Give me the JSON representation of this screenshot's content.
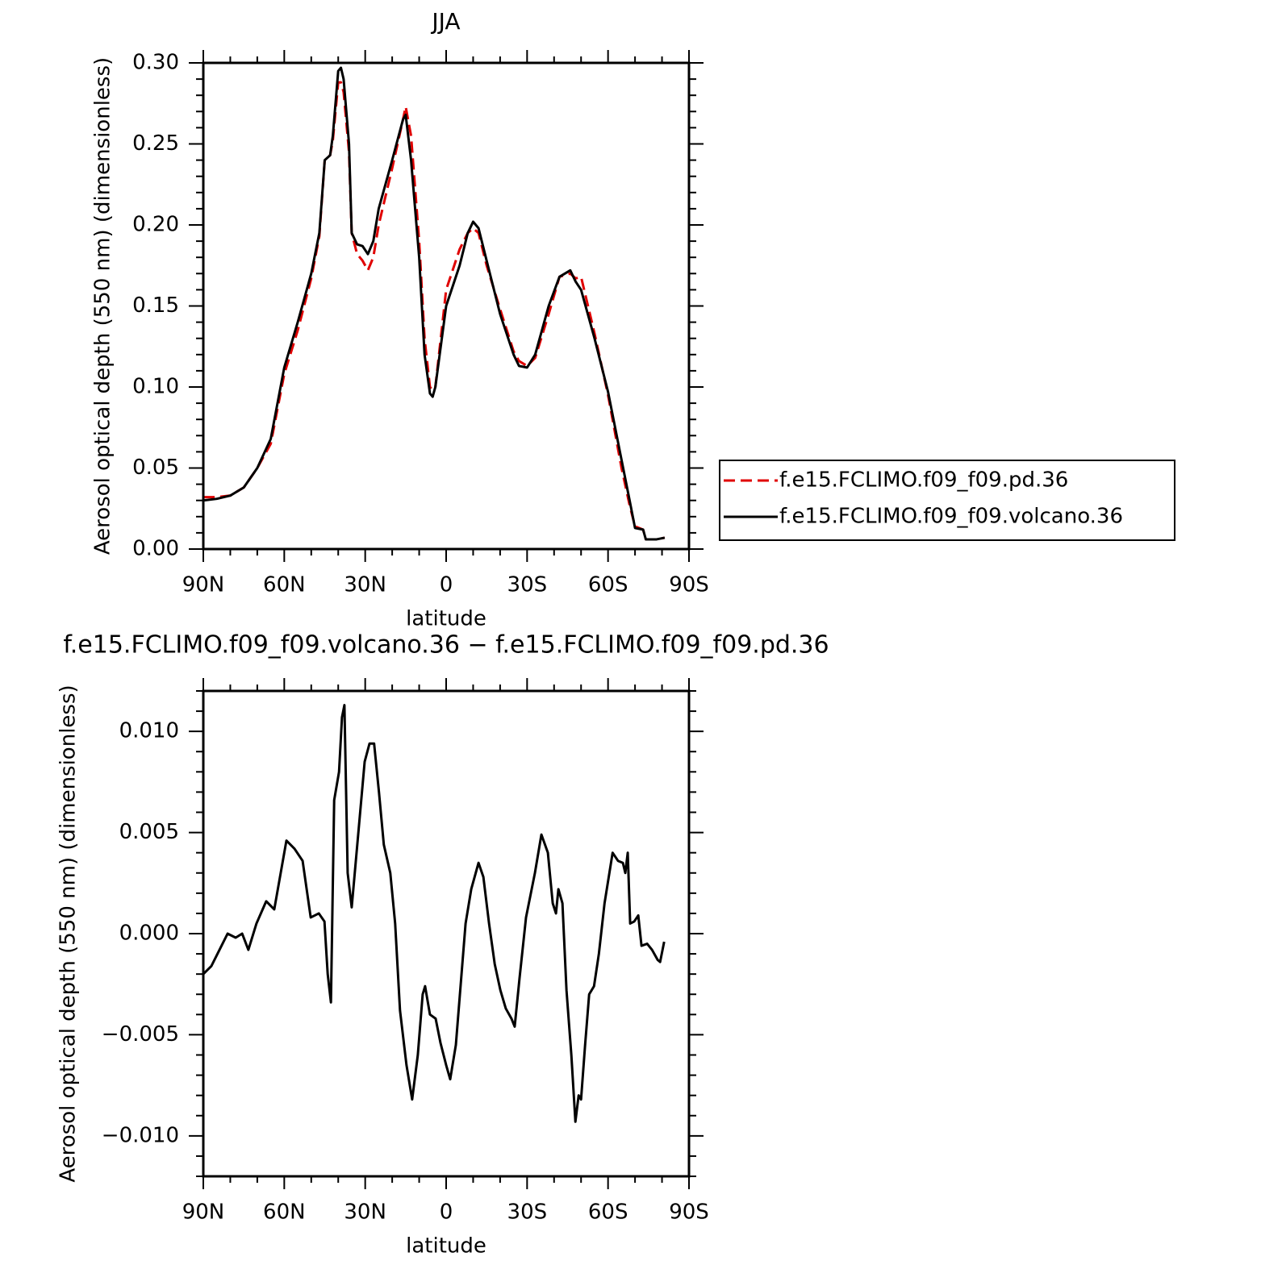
{
  "chart_data": [
    {
      "type": "line",
      "title": "JJA",
      "x_label": "latitude",
      "y_label": "Aerosol optical depth (550 nm) (dimensionless)",
      "x": [
        90,
        85,
        80,
        75,
        70,
        65,
        60,
        55,
        50,
        47,
        45,
        43,
        42,
        40,
        39,
        38,
        36,
        35,
        33,
        31,
        29,
        27,
        25,
        20,
        16,
        15,
        13,
        10,
        8,
        6,
        5,
        4,
        2,
        0,
        -5,
        -8,
        -10,
        -12,
        -15,
        -20,
        -25,
        -27,
        -30,
        -33,
        -38,
        -42,
        -46,
        -48,
        -50,
        -55,
        -60,
        -65,
        -68,
        -70,
        -73,
        -74,
        -78,
        -81
      ],
      "series": [
        {
          "name": "f.e15.FCLIMO.f09_f09.pd.36",
          "color": "#e00000",
          "linestyle": "dashed",
          "values": [
            0.032,
            0.032,
            0.033,
            0.038,
            0.05,
            0.065,
            0.108,
            0.135,
            0.167,
            0.193,
            0.24,
            0.243,
            0.252,
            0.288,
            0.288,
            0.282,
            0.245,
            0.195,
            0.182,
            0.178,
            0.172,
            0.18,
            0.2,
            0.235,
            0.265,
            0.273,
            0.255,
            0.19,
            0.13,
            0.1,
            0.098,
            0.1,
            0.13,
            0.16,
            0.185,
            0.195,
            0.198,
            0.195,
            0.175,
            0.148,
            0.122,
            0.116,
            0.113,
            0.118,
            0.145,
            0.168,
            0.17,
            0.167,
            0.168,
            0.133,
            0.095,
            0.05,
            0.027,
            0.014,
            0.012,
            0.006,
            0.006,
            0.007
          ]
        },
        {
          "name": "f.e15.FCLIMO.f09_f09.volcano.36",
          "color": "#000000",
          "linestyle": "solid",
          "values": [
            0.03,
            0.031,
            0.033,
            0.038,
            0.05,
            0.068,
            0.112,
            0.14,
            0.17,
            0.195,
            0.24,
            0.243,
            0.255,
            0.295,
            0.297,
            0.29,
            0.25,
            0.195,
            0.188,
            0.187,
            0.182,
            0.19,
            0.21,
            0.24,
            0.265,
            0.268,
            0.24,
            0.18,
            0.12,
            0.096,
            0.094,
            0.1,
            0.125,
            0.15,
            0.175,
            0.195,
            0.202,
            0.198,
            0.178,
            0.145,
            0.12,
            0.113,
            0.112,
            0.12,
            0.15,
            0.168,
            0.172,
            0.165,
            0.16,
            0.13,
            0.097,
            0.055,
            0.03,
            0.013,
            0.012,
            0.006,
            0.006,
            0.007
          ]
        }
      ],
      "xlim": [
        90,
        -90
      ],
      "xticks": [
        {
          "value": 90,
          "label": "90N"
        },
        {
          "value": 60,
          "label": "60N"
        },
        {
          "value": 30,
          "label": "30N"
        },
        0,
        {
          "value": -30,
          "label": "30S"
        },
        {
          "value": -60,
          "label": "60S"
        },
        {
          "value": -90,
          "label": "90S"
        }
      ],
      "ylim": [
        0,
        0.3
      ],
      "yticks": [
        {
          "value": 0,
          "label": "0.00"
        },
        {
          "value": 0.05,
          "label": "0.05"
        },
        {
          "value": 0.1,
          "label": "0.10"
        },
        {
          "value": 0.15,
          "label": "0.15"
        },
        {
          "value": 0.2,
          "label": "0.20"
        },
        {
          "value": 0.25,
          "label": "0.25"
        },
        {
          "value": 0.3,
          "label": "0.30"
        }
      ],
      "legend": "right"
    },
    {
      "type": "line",
      "title": "f.e15.FCLIMO.f09_f09.volcano.36 − f.e15.FCLIMO.f09_f09.pd.36",
      "x_label": "latitude",
      "y_label": "Aerosol optical depth (550 nm) (dimensionless)",
      "x": [
        90,
        87.0,
        84.0,
        81.0,
        78.0,
        75.6,
        73.3,
        70.3,
        66.7,
        63.7,
        59.2,
        56.2,
        53.2,
        50.2,
        47.2,
        45.1,
        43.9,
        42.7,
        41.5,
        39.7,
        38.6,
        37.7,
        36.5,
        35.0,
        33.2,
        30.2,
        28.4,
        26.7,
        24.9,
        23.1,
        20.7,
        18.9,
        17.1,
        14.7,
        12.6,
        10.5,
        8.7,
        7.8,
        6.0,
        3.9,
        2.1,
        0,
        -1.5,
        -3.6,
        -5.4,
        -7.2,
        -9.3,
        -12.0,
        -13.8,
        -15.9,
        -18.0,
        -20.1,
        -22.1,
        -24.2,
        -25.4,
        -27.2,
        -29.6,
        -32.9,
        -35.3,
        -37.7,
        -39.5,
        -40.7,
        -41.6,
        -43.1,
        -44.6,
        -46.4,
        -47.9,
        -49.1,
        -50.0,
        -51.5,
        -53.0,
        -54.8,
        -56.6,
        -58.7,
        -61.7,
        -63.7,
        -65.5,
        -66.4,
        -67.3,
        -68.2,
        -69.7,
        -71.2,
        -72.4,
        -74.5,
        -76.3,
        -78.4,
        -79.3,
        -80.8
      ],
      "values": [
        -0.002,
        -0.0016,
        -0.0008,
        0.0,
        -0.0002,
        0.0,
        -0.0008,
        0.0005,
        0.0016,
        0.0012,
        0.0046,
        0.0042,
        0.0036,
        0.0008,
        0.001,
        0.0006,
        -0.002,
        -0.0034,
        0.0066,
        0.008,
        0.0107,
        0.0113,
        0.003,
        0.0013,
        0.004,
        0.0085,
        0.0094,
        0.0094,
        0.007,
        0.0044,
        0.003,
        0.0005,
        -0.0038,
        -0.0065,
        -0.0082,
        -0.006,
        -0.003,
        -0.0026,
        -0.004,
        -0.0042,
        -0.0054,
        -0.0065,
        -0.0072,
        -0.0055,
        -0.0025,
        0.0005,
        0.0022,
        0.0035,
        0.0028,
        0.0005,
        -0.0015,
        -0.0028,
        -0.0037,
        -0.0042,
        -0.0046,
        -0.0022,
        0.0008,
        0.003,
        0.0049,
        0.004,
        0.0015,
        0.001,
        0.0022,
        0.0015,
        -0.0028,
        -0.006,
        -0.0093,
        -0.008,
        -0.0082,
        -0.0055,
        -0.003,
        -0.0026,
        -0.001,
        0.0015,
        0.004,
        0.0036,
        0.0035,
        0.003,
        0.004,
        0.0005,
        0.0006,
        0.0009,
        -0.0006,
        -0.0005,
        -0.0008,
        -0.0013,
        -0.0014,
        -0.0004
      ],
      "color": "#000000",
      "xlim": [
        90,
        -90
      ],
      "xticks": [
        {
          "value": 90,
          "label": "90N"
        },
        {
          "value": 60,
          "label": "60N"
        },
        {
          "value": 30,
          "label": "30N"
        },
        0,
        {
          "value": -30,
          "label": "30S"
        },
        {
          "value": -60,
          "label": "60S"
        },
        {
          "value": -90,
          "label": "90S"
        }
      ],
      "ylim": [
        -0.012,
        0.012
      ],
      "yticks": [
        {
          "value": -0.01,
          "label": "−0.010"
        },
        {
          "value": -0.005,
          "label": "−0.005"
        },
        {
          "value": 0,
          "label": "0.000"
        },
        {
          "value": 0.005,
          "label": "0.005"
        },
        {
          "value": 0.01,
          "label": "0.010"
        }
      ]
    }
  ]
}
